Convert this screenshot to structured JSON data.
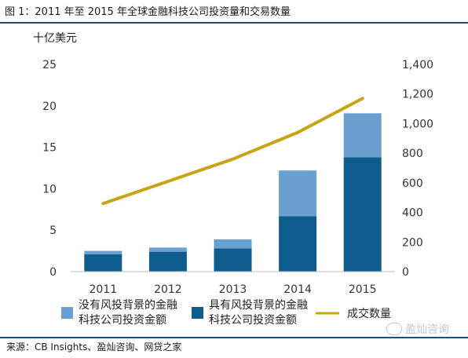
{
  "figure_title": "图 1：2011 年至 2015 年全球金融科技公司投资量和交易数量",
  "source_text": "来源：CB Insights、盈灿咨询、网贷之家",
  "watermark_text": "盈灿咨询",
  "colors": {
    "series_light": "#6a9fd0",
    "series_dark": "#0f5c8f",
    "line": "#c8a415",
    "rule": "#1f4e79",
    "axis_text": "#333333"
  },
  "chart_data": {
    "type": "bar",
    "stacked": true,
    "unit_label": "十亿美元",
    "categories": [
      "2011",
      "2012",
      "2013",
      "2014",
      "2015"
    ],
    "left_axis": {
      "ylim": [
        0,
        25
      ],
      "ticks": [
        "0",
        "5",
        "10",
        "15",
        "20",
        "25"
      ]
    },
    "right_axis": {
      "ylim": [
        0,
        1400
      ],
      "ticks": [
        "0",
        "200",
        "400",
        "600",
        "800",
        "1,000",
        "1,200",
        "1,400"
      ]
    },
    "series": [
      {
        "name": "具有风投背景的金融科技公司投资金额",
        "axis": "left",
        "color": "#0f5c8f",
        "values": [
          2.1,
          2.4,
          2.8,
          6.7,
          13.8
        ]
      },
      {
        "name": "没有风投背景的金融科技公司投资金额",
        "axis": "left",
        "color": "#6a9fd0",
        "values": [
          0.4,
          0.5,
          1.1,
          5.5,
          5.3
        ]
      },
      {
        "name": "成交数量",
        "type": "line",
        "axis": "right",
        "color": "#c8a415",
        "values": [
          460,
          610,
          760,
          940,
          1170
        ]
      }
    ],
    "legend": [
      {
        "label_line1": "没有风投背景的金融",
        "label_line2": "科技公司投资金额",
        "kind": "box",
        "color": "#6a9fd0"
      },
      {
        "label_line1": "具有风投背景的金融",
        "label_line2": "科技公司投资金额",
        "kind": "box",
        "color": "#0f5c8f"
      },
      {
        "label_line1": "成交数量",
        "label_line2": "",
        "kind": "line",
        "color": "#c8a415"
      }
    ],
    "legend_position": "bottom",
    "grid": false
  }
}
